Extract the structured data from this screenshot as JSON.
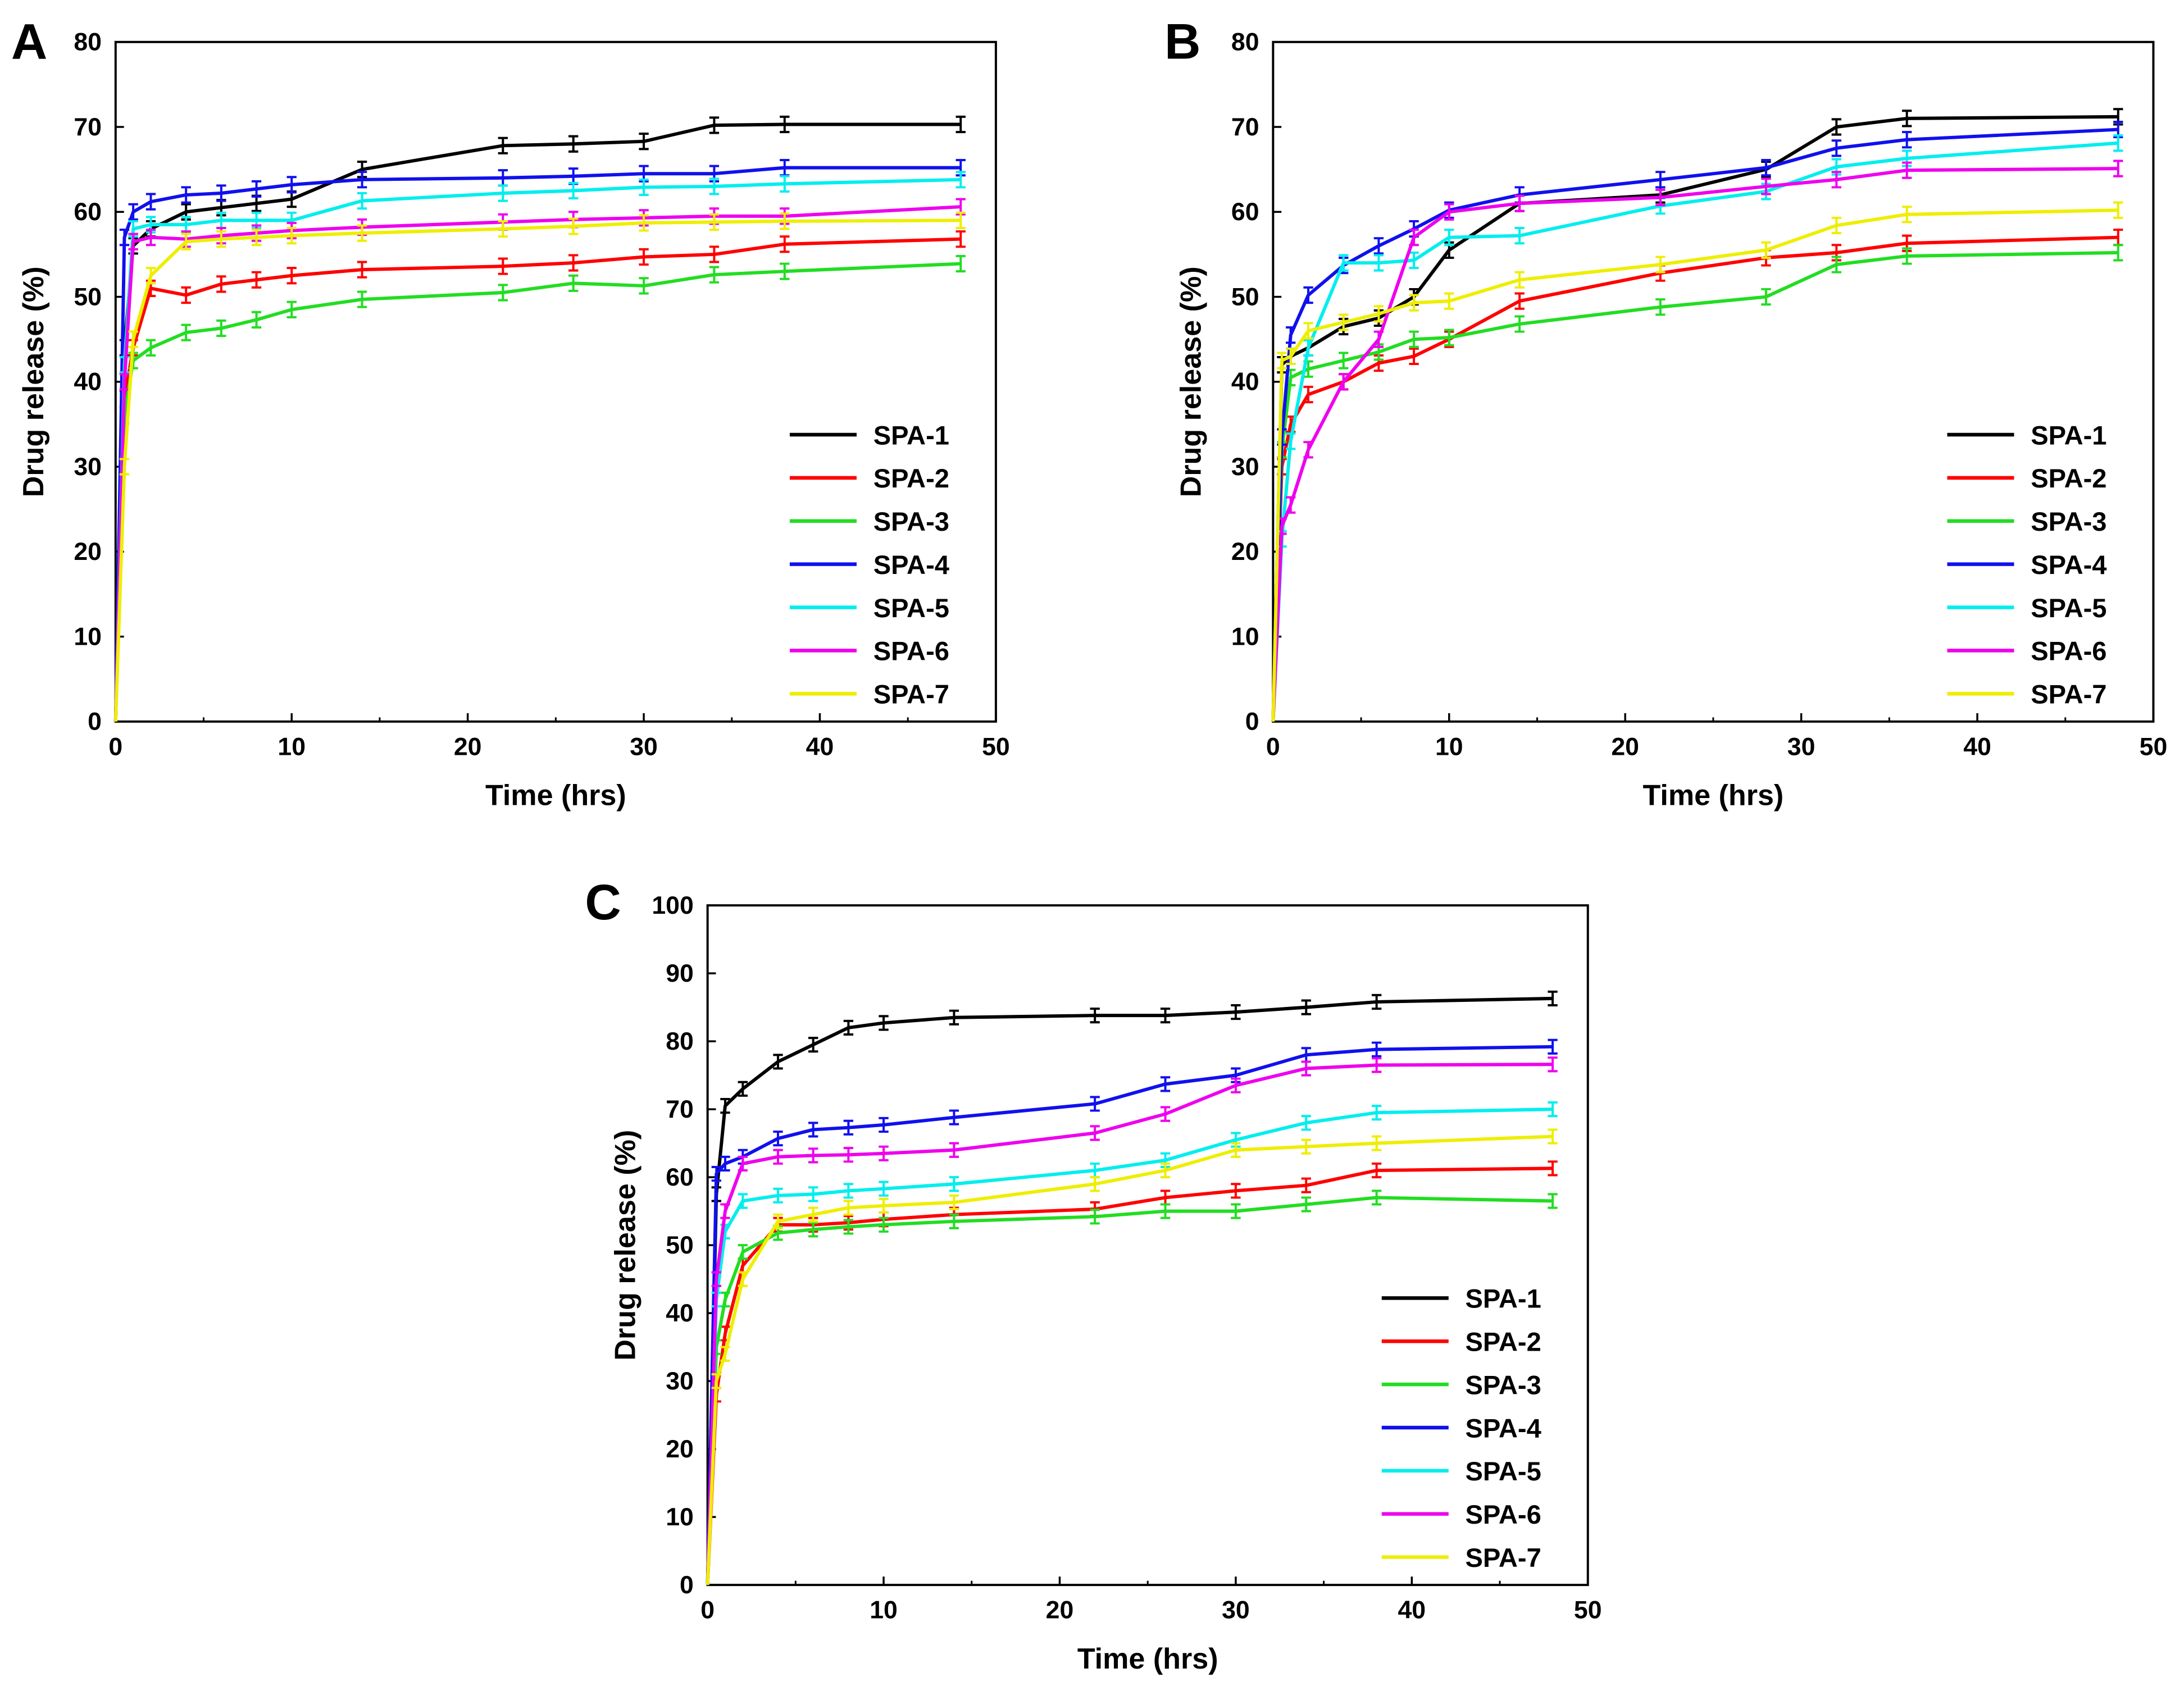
{
  "chart_data": [
    {
      "type": "line",
      "panel_label": "A",
      "xlabel": "Time (hrs)",
      "ylabel": "Drug release (%)",
      "xlim": [
        0,
        50
      ],
      "ylim": [
        0,
        80
      ],
      "xticks": [
        0,
        10,
        20,
        30,
        40,
        50
      ],
      "yticks": [
        0,
        10,
        20,
        30,
        40,
        50,
        60,
        70,
        80
      ],
      "grid": false,
      "legend_position": "bottom-right",
      "error_bar": 0.9,
      "x": [
        0,
        0.5,
        1,
        2,
        4,
        6,
        8,
        10,
        14,
        22,
        26,
        30,
        34,
        38,
        48
      ],
      "series": [
        {
          "name": "SPA-1",
          "color": "#000000",
          "values": [
            0,
            44,
            56,
            58,
            60,
            60.5,
            61,
            61.5,
            65,
            67.8,
            68,
            68.3,
            70.2,
            70.3,
            70.3
          ]
        },
        {
          "name": "SPA-2",
          "color": "#ff0000",
          "values": [
            0,
            38,
            44,
            51,
            50.2,
            51.5,
            52,
            52.5,
            53.2,
            53.6,
            54,
            54.7,
            55,
            56.2,
            56.8
          ]
        },
        {
          "name": "SPA-3",
          "color": "#22dd22",
          "values": [
            0,
            36,
            42.5,
            44,
            45.8,
            46.3,
            47.3,
            48.5,
            49.7,
            50.5,
            51.6,
            51.3,
            52.6,
            53,
            53.9
          ]
        },
        {
          "name": "SPA-4",
          "color": "#1010ee",
          "values": [
            0,
            57,
            60,
            61.2,
            62,
            62.2,
            62.7,
            63.2,
            63.8,
            64,
            64.2,
            64.5,
            64.5,
            65.2,
            65.2
          ]
        },
        {
          "name": "SPA-5",
          "color": "#00eeee",
          "values": [
            0,
            42,
            58,
            58.5,
            58.5,
            59,
            59,
            59,
            61.3,
            62.2,
            62.5,
            62.9,
            63,
            63.3,
            63.8
          ]
        },
        {
          "name": "SPA-6",
          "color": "#ee00ee",
          "values": [
            0,
            40,
            56.5,
            57,
            56.8,
            57.2,
            57.5,
            57.8,
            58.2,
            58.8,
            59.1,
            59.3,
            59.5,
            59.5,
            60.6
          ]
        },
        {
          "name": "SPA-7",
          "color": "#eeee00",
          "values": [
            0,
            30,
            45,
            52.5,
            56.5,
            56.8,
            57,
            57.2,
            57.5,
            58,
            58.3,
            58.7,
            58.8,
            58.9,
            59
          ]
        }
      ]
    },
    {
      "type": "line",
      "panel_label": "B",
      "xlabel": "Time (hrs)",
      "ylabel": "Drug release (%)",
      "xlim": [
        0,
        50
      ],
      "ylim": [
        0,
        80
      ],
      "xticks": [
        0,
        10,
        20,
        30,
        40,
        50
      ],
      "yticks": [
        0,
        10,
        20,
        30,
        40,
        50,
        60,
        70,
        80
      ],
      "grid": false,
      "legend_position": "bottom-right",
      "error_bar": 0.9,
      "x": [
        0,
        0.5,
        1,
        2,
        4,
        6,
        8,
        10,
        14,
        22,
        28,
        32,
        36,
        48
      ],
      "series": [
        {
          "name": "SPA-1",
          "color": "#000000",
          "values": [
            0,
            42,
            43,
            44,
            46.5,
            47.5,
            50,
            55.5,
            61,
            62,
            65,
            70,
            71,
            71.2
          ]
        },
        {
          "name": "SPA-2",
          "color": "#ff0000",
          "values": [
            0,
            30,
            35,
            38.5,
            40,
            42.2,
            43,
            45,
            49.5,
            52.8,
            54.6,
            55.2,
            56.3,
            57
          ]
        },
        {
          "name": "SPA-3",
          "color": "#22dd22",
          "values": [
            0,
            32,
            40.5,
            41.5,
            42.5,
            43.5,
            45,
            45.2,
            46.8,
            48.8,
            50,
            53.8,
            54.8,
            55.2
          ]
        },
        {
          "name": "SPA-4",
          "color": "#1010ee",
          "values": [
            0,
            33.5,
            45.5,
            50.2,
            53.7,
            56,
            58,
            60.2,
            62,
            63.8,
            65.2,
            67.5,
            68.5,
            69.7
          ]
        },
        {
          "name": "SPA-5",
          "color": "#00eeee",
          "values": [
            0,
            21.5,
            33,
            44,
            54,
            54,
            54.3,
            57,
            57.2,
            60.7,
            62.4,
            65.3,
            66.3,
            68.1
          ]
        },
        {
          "name": "SPA-6",
          "color": "#ee00ee",
          "values": [
            0,
            23,
            25.5,
            32,
            40,
            45,
            57,
            60,
            61,
            61.7,
            63,
            63.8,
            64.9,
            65.1
          ]
        },
        {
          "name": "SPA-7",
          "color": "#eeee00",
          "values": [
            0,
            42.5,
            43,
            46,
            47,
            48,
            49.3,
            49.5,
            52,
            53.8,
            55.5,
            58.4,
            59.7,
            60.2
          ]
        }
      ]
    },
    {
      "type": "line",
      "panel_label": "C",
      "xlabel": "Time (hrs)",
      "ylabel": "Drug release (%)",
      "xlim": [
        0,
        50
      ],
      "ylim": [
        0,
        100
      ],
      "xticks": [
        0,
        10,
        20,
        30,
        40,
        50
      ],
      "yticks": [
        0,
        10,
        20,
        30,
        40,
        50,
        60,
        70,
        80,
        90,
        100
      ],
      "grid": false,
      "legend_position": "bottom-right",
      "error_bar": 1.0,
      "x": [
        0,
        0.5,
        1,
        2,
        4,
        6,
        8,
        10,
        14,
        22,
        26,
        30,
        34,
        38,
        48
      ],
      "series": [
        {
          "name": "SPA-1",
          "color": "#000000",
          "values": [
            0,
            57.5,
            70.5,
            73,
            77,
            79.5,
            82,
            82.7,
            83.5,
            83.8,
            83.8,
            84.3,
            85,
            85.8,
            86.3
          ]
        },
        {
          "name": "SPA-2",
          "color": "#ff0000",
          "values": [
            0,
            28,
            37,
            47,
            53,
            53,
            53.3,
            53.8,
            54.5,
            55.3,
            57,
            58,
            58.8,
            61,
            61.3
          ]
        },
        {
          "name": "SPA-3",
          "color": "#22dd22",
          "values": [
            0,
            35,
            42,
            49,
            51.8,
            52.3,
            52.7,
            53,
            53.5,
            54.2,
            55,
            55,
            56,
            57,
            56.5
          ]
        },
        {
          "name": "SPA-4",
          "color": "#1010ee",
          "values": [
            0,
            60.5,
            62,
            63,
            65.7,
            67,
            67.3,
            67.7,
            68.8,
            70.8,
            73.7,
            75,
            78,
            78.8,
            79.2
          ]
        },
        {
          "name": "SPA-5",
          "color": "#00eeee",
          "values": [
            0,
            42,
            52,
            56.5,
            57.3,
            57.5,
            58,
            58.3,
            59,
            61,
            62.5,
            65.5,
            68,
            69.5,
            70
          ]
        },
        {
          "name": "SPA-6",
          "color": "#ee00ee",
          "values": [
            0,
            45,
            55,
            62,
            63,
            63.2,
            63.3,
            63.5,
            64,
            66.5,
            69.3,
            73.5,
            76,
            76.5,
            76.6
          ]
        },
        {
          "name": "SPA-7",
          "color": "#eeee00",
          "values": [
            0,
            30,
            34,
            45,
            53.5,
            54.5,
            55.5,
            55.8,
            56.3,
            59,
            61,
            64,
            64.5,
            65,
            66
          ]
        }
      ]
    }
  ]
}
